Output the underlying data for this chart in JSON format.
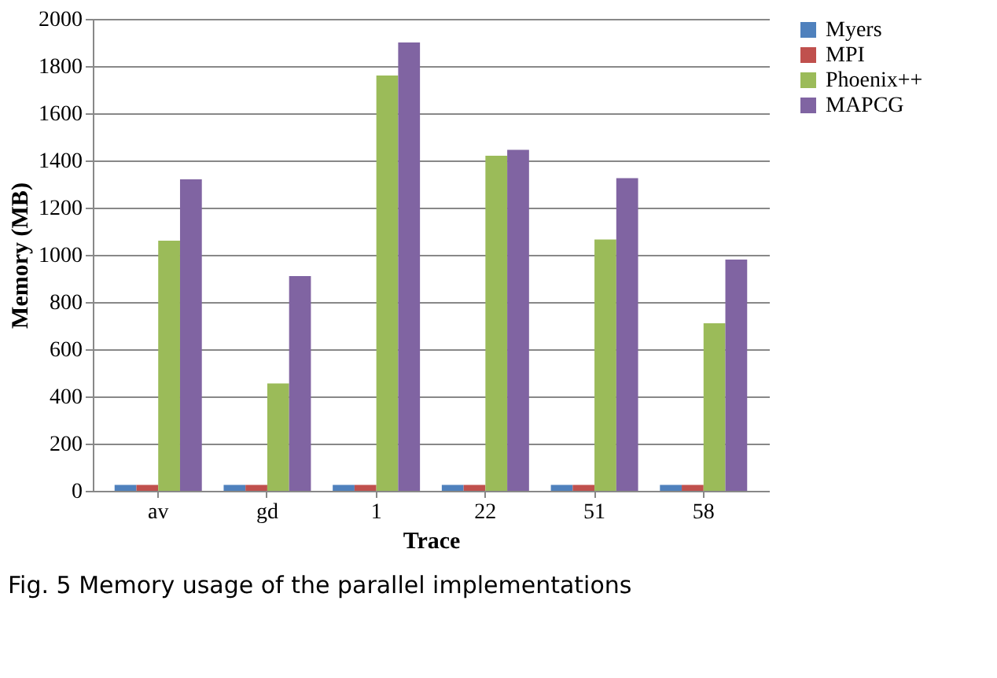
{
  "chart_data": {
    "type": "bar",
    "xlabel": "Trace",
    "ylabel": "Memory (MB)",
    "categories": [
      "av",
      "gd",
      "1",
      "22",
      "51",
      "58"
    ],
    "series": [
      {
        "name": "Myers",
        "color": "#4f81bd",
        "values": [
          25,
          25,
          25,
          25,
          25,
          25
        ]
      },
      {
        "name": "MPI",
        "color": "#c0504d",
        "values": [
          25,
          25,
          25,
          25,
          25,
          25
        ]
      },
      {
        "name": "Phoenix++",
        "color": "#9bbb59",
        "values": [
          1060,
          455,
          1760,
          1420,
          1065,
          710
        ]
      },
      {
        "name": "MAPCG",
        "color": "#8064a2",
        "values": [
          1320,
          910,
          1900,
          1445,
          1325,
          980
        ]
      }
    ],
    "ylim": [
      0,
      2000
    ],
    "yticks": [
      0,
      200,
      400,
      600,
      800,
      1000,
      1200,
      1400,
      1600,
      1800,
      2000
    ],
    "grid": "y",
    "legend": "right",
    "annotations": [
      "Fig. 5 Memory usage of the parallel implementations"
    ]
  }
}
